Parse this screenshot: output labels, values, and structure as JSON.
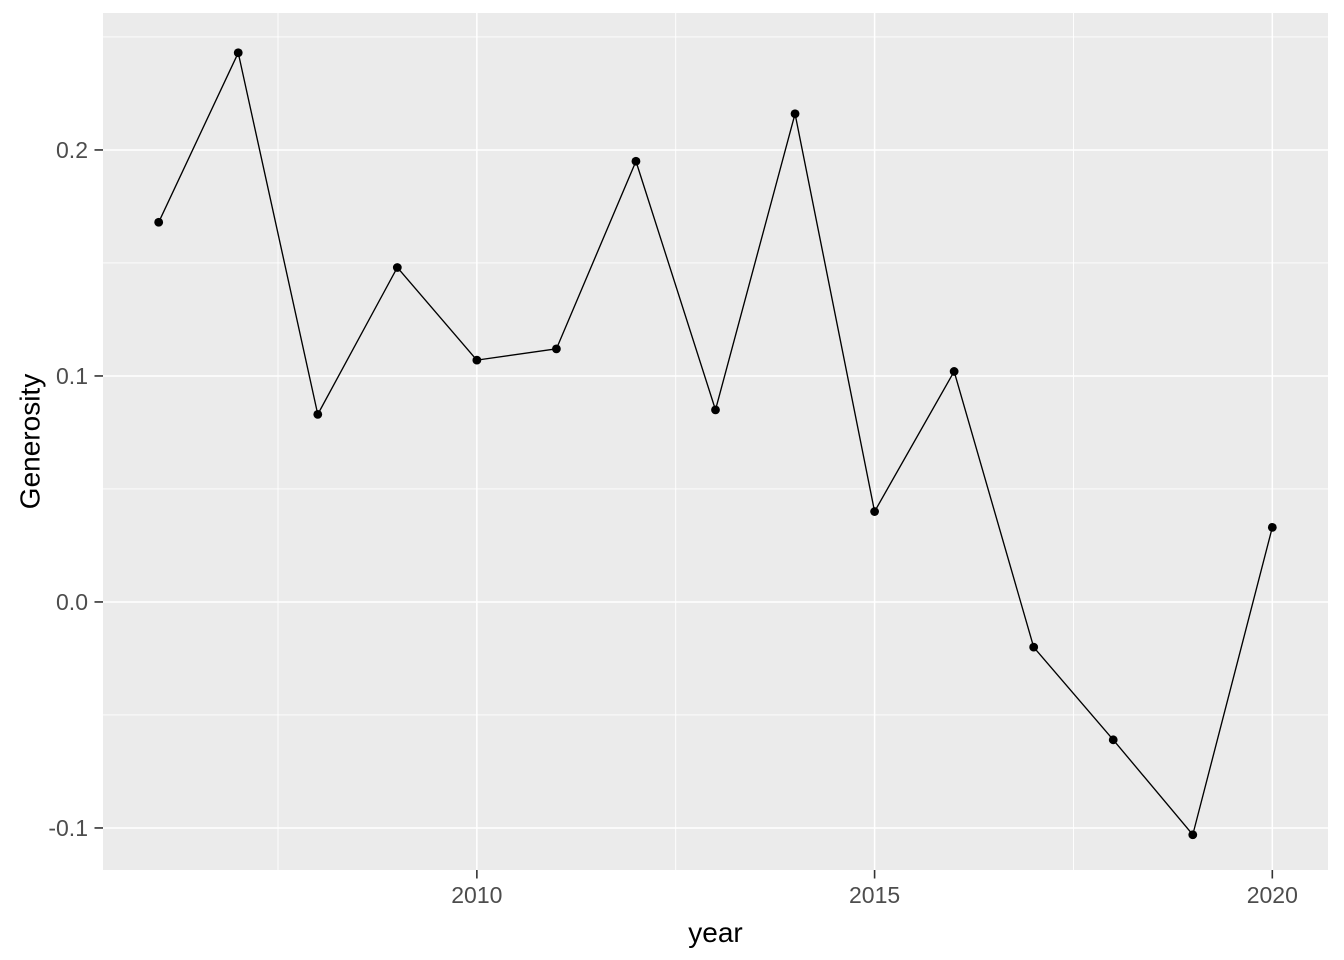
{
  "figure": {
    "background_color": "#ffffff",
    "panel_background_color": "#ebebeb",
    "gridline_color": "#ffffff",
    "line_color": "#000000",
    "point_color": "#000000",
    "tick_mark_color": "#333333",
    "tick_label_color": "#4d4d4d",
    "axis_title_color": "#000000"
  },
  "chart_data": {
    "type": "line",
    "title": "",
    "xlabel": "year",
    "ylabel": "Generosity",
    "x": [
      2006,
      2007,
      2008,
      2009,
      2010,
      2011,
      2012,
      2013,
      2014,
      2015,
      2016,
      2017,
      2018,
      2019,
      2020
    ],
    "y": [
      0.168,
      0.243,
      0.083,
      0.148,
      0.107,
      0.112,
      0.195,
      0.085,
      0.216,
      0.04,
      0.102,
      -0.02,
      -0.061,
      -0.103,
      0.033
    ],
    "series_name": "Generosity",
    "marker": "point",
    "grid": true,
    "legend_position": "none",
    "xlim": [
      2005.3,
      2020.7
    ],
    "ylim": [
      -0.1186,
      0.2606
    ],
    "x_major_ticks": [
      2010,
      2015,
      2020
    ],
    "x_major_labels": [
      "2010",
      "2015",
      "2020"
    ],
    "x_minor_ticks": [
      2007.5,
      2012.5,
      2017.5
    ],
    "y_major_ticks": [
      0.2,
      0.1,
      0.0,
      -0.1
    ],
    "y_major_labels": [
      "0.2",
      "0.1",
      "0.0",
      "-0.1"
    ],
    "y_minor_ticks": [
      0.25,
      0.15,
      0.05,
      -0.05
    ]
  }
}
